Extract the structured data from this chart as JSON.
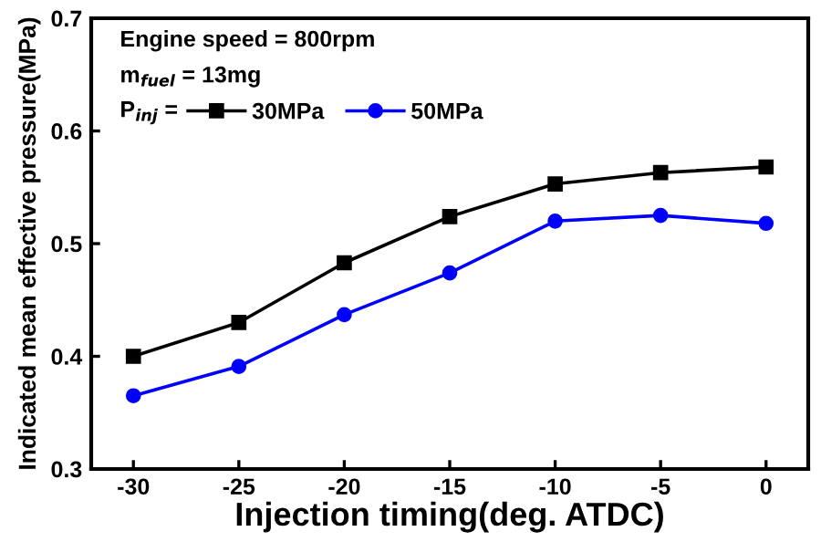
{
  "chart_data": {
    "type": "line",
    "xlabel": "Injection timing(deg. ATDC)",
    "ylabel": "Indicated mean effective pressure(MPa)",
    "annotations": [
      "Engine speed = 800rpm",
      "m$_{fuel}$ = 13mg",
      "P$_{inj}$ = "
    ],
    "x": [
      -30,
      -25,
      -20,
      -15,
      -10,
      -5,
      0
    ],
    "series": [
      {
        "name": "30MPa",
        "color": "#000000",
        "marker": "square",
        "values": [
          0.4,
          0.43,
          0.483,
          0.524,
          0.553,
          0.563,
          0.568
        ]
      },
      {
        "name": "50MPa",
        "color": "#0000ff",
        "marker": "circle",
        "values": [
          0.365,
          0.391,
          0.437,
          0.474,
          0.52,
          0.525,
          0.518
        ]
      }
    ],
    "xlim": [
      -32,
      2
    ],
    "xticks": [
      -30,
      -25,
      -20,
      -15,
      -10,
      -5,
      0
    ],
    "ylim": [
      0.3,
      0.7
    ],
    "yticks": [
      0.3,
      0.4,
      0.5,
      0.6,
      0.7
    ],
    "grid": false,
    "legend": "top left",
    "line_style": "solid"
  }
}
